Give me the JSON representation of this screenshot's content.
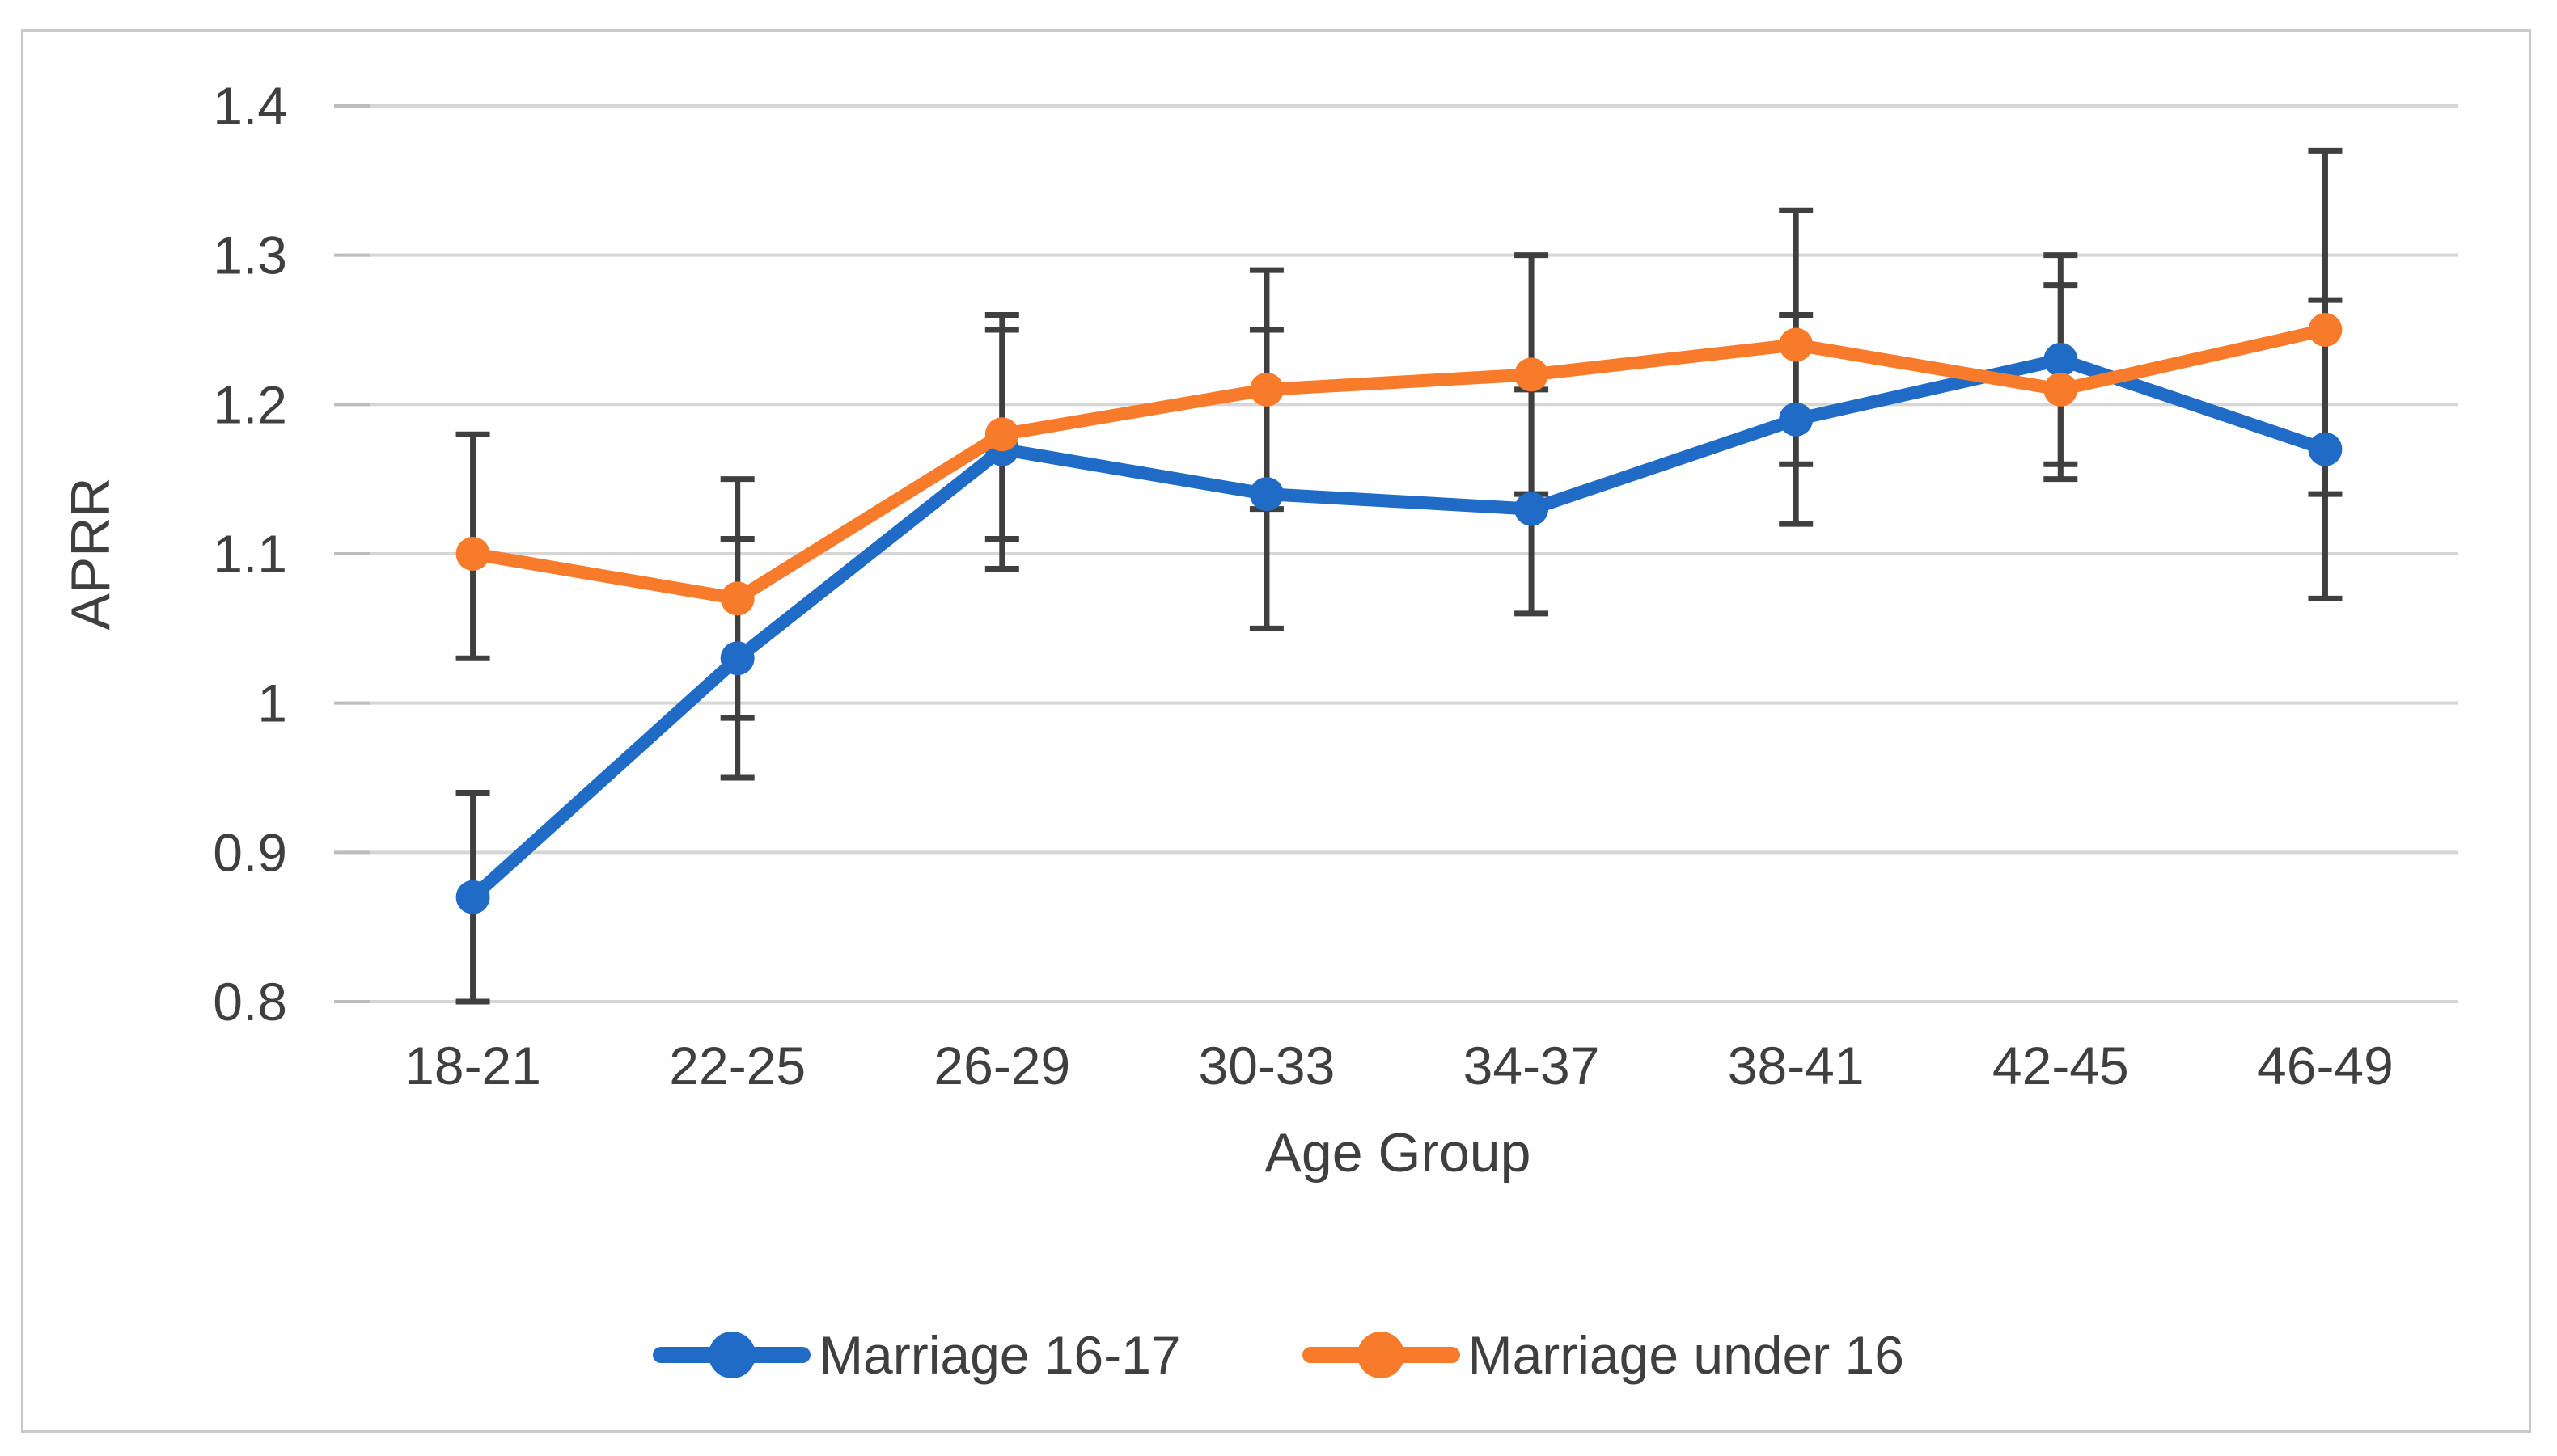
{
  "chart_data": {
    "type": "line",
    "title": "",
    "categories": [
      "18-21",
      "22-25",
      "26-29",
      "30-33",
      "34-37",
      "38-41",
      "42-45",
      "46-49"
    ],
    "xlabel": "Age Group",
    "ylabel": "APRR",
    "ylim": [
      0.8,
      1.4
    ],
    "y_ticks": [
      1.4,
      1.3,
      1.2,
      1.1,
      1,
      0.9,
      0.8
    ],
    "y_tick_labels": [
      "1.4",
      "1.3",
      "1.2",
      "1.1",
      "1",
      "0.9",
      "0.8"
    ],
    "grid": true,
    "legend_position": "bottom",
    "marker": "circle",
    "error_bars": true,
    "series": [
      {
        "name": "Marriage 16-17",
        "color": "#1F6BC6",
        "values": [
          0.87,
          1.03,
          1.17,
          1.14,
          1.13,
          1.19,
          1.23,
          1.17
        ],
        "error_low": [
          0.8,
          0.95,
          1.09,
          1.05,
          1.06,
          1.12,
          1.16,
          1.07
        ],
        "error_high": [
          0.94,
          1.11,
          1.25,
          1.25,
          1.21,
          1.26,
          1.3,
          1.27
        ]
      },
      {
        "name": "Marriage under 16",
        "color": "#F87B2B",
        "values": [
          1.1,
          1.07,
          1.18,
          1.21,
          1.22,
          1.24,
          1.21,
          1.25
        ],
        "error_low": [
          1.03,
          0.99,
          1.11,
          1.13,
          1.14,
          1.16,
          1.15,
          1.14
        ],
        "error_high": [
          1.18,
          1.15,
          1.26,
          1.29,
          1.3,
          1.33,
          1.28,
          1.37
        ]
      }
    ],
    "colors": {
      "gridline": "#D6D6D6",
      "tick_mark": "#BDBDBD",
      "error_bar": "#3F3F3F",
      "text": "#3F3F3F",
      "frame_border": "#C9C9C9",
      "background": "#FFFFFF"
    }
  }
}
